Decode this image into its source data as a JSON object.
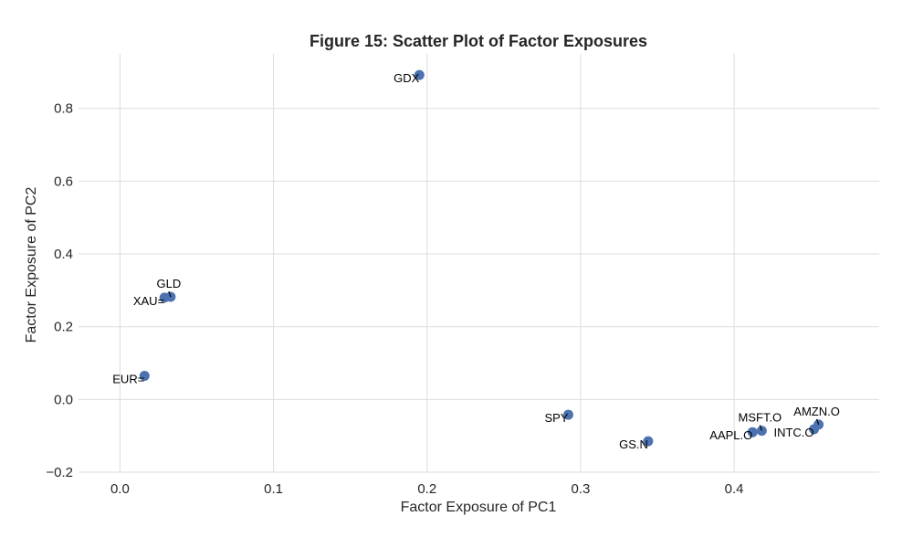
{
  "chart_data": {
    "type": "scatter",
    "title": "Figure 15: Scatter Plot of Factor Exposures",
    "xlabel": "Factor Exposure of PC1",
    "ylabel": "Factor Exposure of PC2",
    "xlim": [
      -0.027,
      0.4945
    ],
    "ylim": [
      -0.2,
      0.95
    ],
    "xticks": [
      0.0,
      0.1,
      0.2,
      0.3,
      0.4
    ],
    "yticks": [
      -0.2,
      0.0,
      0.2,
      0.4,
      0.6,
      0.8
    ],
    "xtick_labels": [
      "0.0",
      "0.1",
      "0.2",
      "0.3",
      "0.4"
    ],
    "ytick_labels": [
      "−0.2",
      "0.0",
      "0.2",
      "0.4",
      "0.6",
      "0.8"
    ],
    "grid": true,
    "point_color": "#4c72b0",
    "points": [
      {
        "label": "GDX",
        "x": 0.195,
        "y": 0.892,
        "label_pos": "bottom-left"
      },
      {
        "label": "GLD",
        "x": 0.033,
        "y": 0.282,
        "label_pos": "top"
      },
      {
        "label": "XAU=",
        "x": 0.029,
        "y": 0.28,
        "label_pos": "bottom-left"
      },
      {
        "label": "EUR=",
        "x": 0.016,
        "y": 0.065,
        "label_pos": "bottom-left"
      },
      {
        "label": "SPY",
        "x": 0.292,
        "y": -0.042,
        "label_pos": "bottom-left"
      },
      {
        "label": "GS.N",
        "x": 0.344,
        "y": -0.115,
        "label_pos": "bottom-left"
      },
      {
        "label": "AAPL.O",
        "x": 0.412,
        "y": -0.09,
        "label_pos": "bottom-left"
      },
      {
        "label": "MSFT.O",
        "x": 0.418,
        "y": -0.086,
        "label_pos": "top"
      },
      {
        "label": "INTC.O",
        "x": 0.452,
        "y": -0.082,
        "label_pos": "bottom-left"
      },
      {
        "label": "AMZN.O",
        "x": 0.455,
        "y": -0.069,
        "label_pos": "top"
      }
    ]
  }
}
